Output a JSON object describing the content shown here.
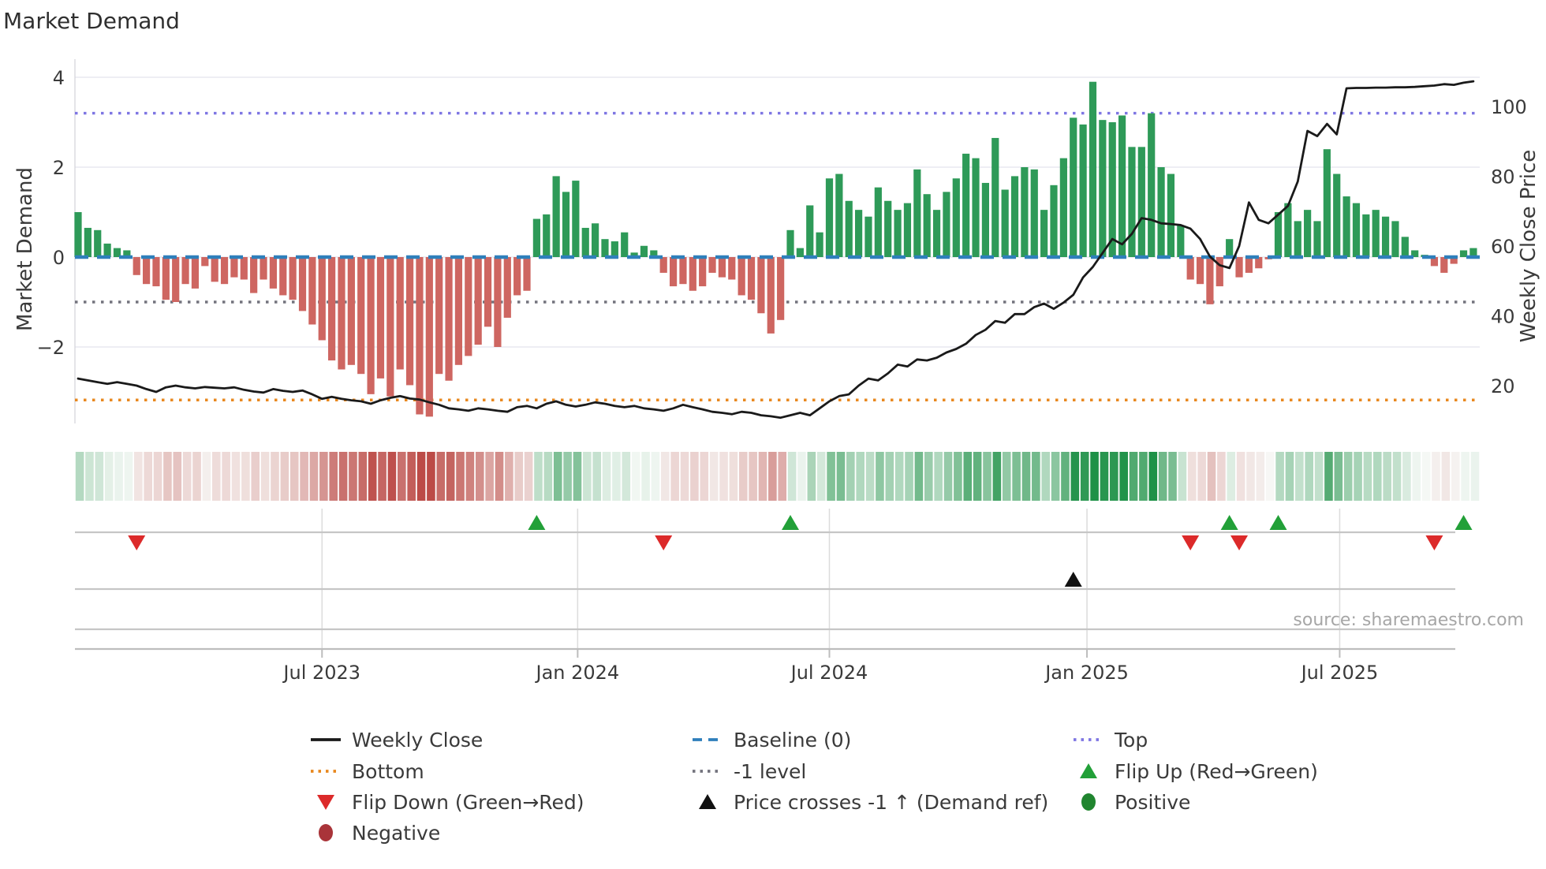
{
  "title": "Market Demand",
  "source": "source: sharemaestro.com",
  "axes": {
    "y_left_label": "Market Demand",
    "y_right_label": "Weekly Close Price",
    "y_left_ticks": [
      {
        "label": "4",
        "value": 4
      },
      {
        "label": "2",
        "value": 2
      },
      {
        "label": "0",
        "value": 0
      },
      {
        "label": "−2",
        "value": -2
      }
    ],
    "y_right_ticks": [
      {
        "label": "100",
        "value": 100
      },
      {
        "label": "80",
        "value": 80
      },
      {
        "label": "60",
        "value": 60
      },
      {
        "label": "40",
        "value": 40
      },
      {
        "label": "20",
        "value": 20
      }
    ],
    "x_ticks": [
      {
        "label": "Jul 2023",
        "week": 25
      },
      {
        "label": "Jan 2024",
        "week": 51.2
      },
      {
        "label": "Jul 2024",
        "week": 77
      },
      {
        "label": "Jan 2025",
        "week": 103.4
      },
      {
        "label": "Jul 2025",
        "week": 129.3
      }
    ]
  },
  "colors": {
    "bar_positive": "#2e9a58",
    "bar_negative": "#ce6661",
    "price_line": "#1a1a1a",
    "baseline": "#2e7fbb",
    "top_line": "#7e76e3",
    "neg1_line": "#73737d",
    "bottom_line": "#e8881f",
    "flip_up": "#22a038",
    "flip_down": "#dc2a2a",
    "positive_dot": "#20852f",
    "negative_dot": "#a93439",
    "cross_marker": "#111111",
    "grid": "#e9e9f1",
    "row_line": "#c6c6c6",
    "heat_green": "#1e9147",
    "heat_red": "#bc4b47"
  },
  "chart_data": {
    "type": "bar+line",
    "title": "Market Demand",
    "ylabel_left": "Market Demand",
    "ylabel_right": "Weekly Close Price",
    "ylim_left": [
      -4.4,
      4.4
    ],
    "ylim_right_ticks": [
      20,
      100
    ],
    "grid": "horizontal",
    "legend_position": "bottom",
    "reference_lines": {
      "baseline": 0,
      "top": 3.2,
      "neg1_level": -1,
      "bottom": -3.2
    },
    "x_is_weekly": true,
    "x_tick_labels": [
      "Jul 2023",
      "Jan 2024",
      "Jul 2024",
      "Jan 2025",
      "Jul 2025"
    ],
    "demand": [
      1.0,
      0.65,
      0.6,
      0.3,
      0.2,
      0.15,
      -0.4,
      -0.6,
      -0.65,
      -0.95,
      -1.0,
      -0.6,
      -0.7,
      -0.2,
      -0.55,
      -0.6,
      -0.45,
      -0.5,
      -0.8,
      -0.5,
      -0.7,
      -0.85,
      -0.95,
      -1.2,
      -1.5,
      -1.85,
      -2.3,
      -2.5,
      -2.4,
      -2.6,
      -3.05,
      -2.7,
      -3.1,
      -2.5,
      -2.85,
      -3.5,
      -3.55,
      -2.6,
      -2.75,
      -2.4,
      -2.2,
      -1.95,
      -1.55,
      -2.0,
      -1.35,
      -0.85,
      -0.75,
      0.85,
      0.95,
      1.8,
      1.45,
      1.7,
      0.65,
      0.75,
      0.4,
      0.35,
      0.55,
      0.1,
      0.25,
      0.15,
      -0.35,
      -0.65,
      -0.6,
      -0.75,
      -0.65,
      -0.35,
      -0.45,
      -0.5,
      -0.85,
      -0.95,
      -1.25,
      -1.7,
      -1.4,
      0.6,
      0.2,
      1.15,
      0.55,
      1.75,
      1.85,
      1.25,
      1.05,
      0.9,
      1.55,
      1.25,
      1.05,
      1.2,
      1.95,
      1.4,
      1.05,
      1.45,
      1.75,
      2.3,
      2.2,
      1.65,
      2.65,
      1.5,
      1.8,
      2.0,
      1.95,
      1.05,
      1.6,
      2.2,
      3.1,
      2.95,
      3.9,
      3.05,
      3.0,
      3.15,
      2.45,
      2.45,
      3.2,
      2.0,
      1.85,
      0.7,
      -0.5,
      -0.6,
      -1.05,
      -0.65,
      0.4,
      -0.45,
      -0.35,
      -0.25,
      -0.05,
      1.0,
      1.2,
      0.8,
      1.05,
      0.8,
      2.4,
      1.85,
      1.35,
      1.2,
      0.95,
      1.05,
      0.9,
      0.8,
      0.45,
      0.15,
      0.05,
      -0.2,
      -0.35,
      -0.15,
      0.15,
      0.2
    ],
    "price": [
      22,
      21.5,
      21,
      20.5,
      21,
      20.5,
      20,
      19,
      18.2,
      19.5,
      20,
      19.5,
      19.2,
      19.6,
      19.4,
      19.2,
      19.5,
      18.8,
      18.3,
      18,
      19,
      18.5,
      18.2,
      18.6,
      17.5,
      16.2,
      16.8,
      16.2,
      15.8,
      15.5,
      14.8,
      15.8,
      16.5,
      17,
      16.3,
      16,
      15.2,
      14.5,
      13.5,
      13.2,
      12.8,
      13.5,
      13.2,
      12.8,
      12.5,
      13.8,
      14.2,
      13.5,
      14.8,
      15.5,
      14.5,
      14,
      14.5,
      15.2,
      14.8,
      14.2,
      13.8,
      14.2,
      13.5,
      13.2,
      12.8,
      13.5,
      14.5,
      13.8,
      13.2,
      12.5,
      12.2,
      11.8,
      12.5,
      12.2,
      11.5,
      11.2,
      10.8,
      11.5,
      12.2,
      11.5,
      13.5,
      15.5,
      17,
      17.5,
      20,
      22,
      21.5,
      23.5,
      26,
      25.5,
      27.5,
      27.2,
      28,
      29.5,
      30.5,
      32,
      34.5,
      36,
      38.5,
      38,
      40.5,
      40.5,
      42.5,
      43.5,
      42,
      43.8,
      46,
      51,
      54,
      58,
      62,
      60.5,
      63.5,
      68,
      67.5,
      66.5,
      66.3,
      66,
      65,
      62,
      57,
      54.5,
      53.7,
      60,
      72.5,
      67.5,
      66.5,
      69,
      71.5,
      78.5,
      93,
      91.5,
      95,
      92,
      105.2,
      105.3,
      105.3,
      105.4,
      105.4,
      105.5,
      105.5,
      105.6,
      105.8,
      106,
      106.4,
      106.2,
      106.8,
      107.2
    ],
    "flip_up_weeks": [
      47,
      73,
      118,
      123,
      142
    ],
    "flip_down_weeks": [
      6,
      60,
      114,
      119,
      139
    ],
    "price_cross_weeks": [
      102
    ]
  },
  "legend": {
    "items": [
      {
        "label": "Weekly Close",
        "swatch": "line",
        "color": "#1a1a1a"
      },
      {
        "label": "Bottom",
        "swatch": "dotted",
        "color": "#e8881f"
      },
      {
        "label": "Flip Down (Green→Red)",
        "swatch": "tri-down",
        "color": "#dc2a2a"
      },
      {
        "label": "Negative",
        "swatch": "circle",
        "color": "#a93439"
      },
      {
        "label": "Baseline (0)",
        "swatch": "dashed",
        "color": "#2e7fbb"
      },
      {
        "label": "-1 level",
        "swatch": "dotted",
        "color": "#73737d"
      },
      {
        "label": "Price crosses -1 ↑ (Demand ref)",
        "swatch": "tri-up",
        "color": "#111111"
      },
      {
        "label": "Top",
        "swatch": "dotted",
        "color": "#7e76e3"
      },
      {
        "label": "Flip Up (Red→Green)",
        "swatch": "tri-up",
        "color": "#22a038"
      },
      {
        "label": "Positive",
        "swatch": "circle",
        "color": "#20852f"
      }
    ]
  }
}
